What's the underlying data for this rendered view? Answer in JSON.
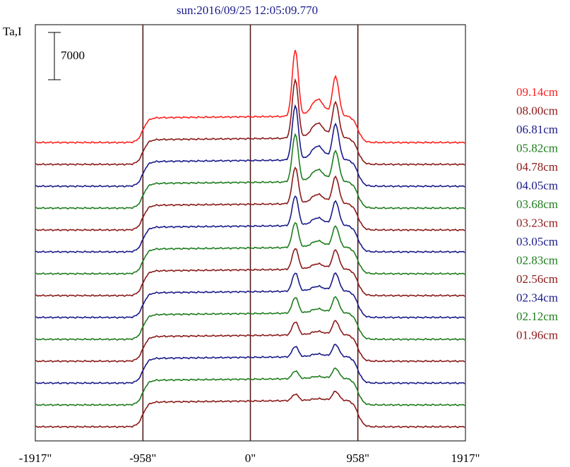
{
  "chart_data": {
    "type": "line",
    "title": "sun:2016/09/25 12:05:09.770",
    "ylabel": "Ta,I",
    "scale_bar_label": "7000",
    "xlim": [
      -1917,
      1917
    ],
    "x_ticks": [
      {
        "value": -1917,
        "label": "-1917\""
      },
      {
        "value": -958,
        "label": "-958\""
      },
      {
        "value": 0,
        "label": "0\""
      },
      {
        "value": 958,
        "label": "958\""
      },
      {
        "value": 1917,
        "label": "1917\""
      }
    ],
    "vertical_lines": [
      -958,
      0,
      958
    ],
    "series": [
      {
        "name": "09.14cm",
        "color": "#ff2020",
        "offset": 14,
        "disk": 1.0,
        "peak_a": 1.0,
        "peak_b": 0.62
      },
      {
        "name": "08.00cm",
        "color": "#8b1a1a",
        "offset": 13,
        "disk": 1.0,
        "peak_a": 0.88,
        "peak_b": 0.56
      },
      {
        "name": "06.81cm",
        "color": "#1a1a8b",
        "offset": 12,
        "disk": 1.0,
        "peak_a": 0.82,
        "peak_b": 0.56
      },
      {
        "name": "05.82cm",
        "color": "#1e7d1e",
        "offset": 11,
        "disk": 1.0,
        "peak_a": 0.72,
        "peak_b": 0.48
      },
      {
        "name": "04.78cm",
        "color": "#8b1a1a",
        "offset": 10,
        "disk": 1.0,
        "peak_a": 0.55,
        "peak_b": 0.42
      },
      {
        "name": "04.05cm",
        "color": "#1a1a8b",
        "offset": 9,
        "disk": 1.0,
        "peak_a": 0.45,
        "peak_b": 0.38
      },
      {
        "name": "03.68cm",
        "color": "#1e7d1e",
        "offset": 8,
        "disk": 1.0,
        "peak_a": 0.38,
        "peak_b": 0.33
      },
      {
        "name": "03.23cm",
        "color": "#8b1a1a",
        "offset": 7,
        "disk": 1.0,
        "peak_a": 0.32,
        "peak_b": 0.3
      },
      {
        "name": "03.05cm",
        "color": "#1a1a8b",
        "offset": 6,
        "disk": 1.0,
        "peak_a": 0.28,
        "peak_b": 0.28
      },
      {
        "name": "02.83cm",
        "color": "#1e7d1e",
        "offset": 5,
        "disk": 1.0,
        "peak_a": 0.24,
        "peak_b": 0.25
      },
      {
        "name": "02.56cm",
        "color": "#8b1a1a",
        "offset": 4,
        "disk": 1.0,
        "peak_a": 0.2,
        "peak_b": 0.22
      },
      {
        "name": "02.34cm",
        "color": "#1a1a8b",
        "offset": 3,
        "disk": 1.0,
        "peak_a": 0.16,
        "peak_b": 0.19
      },
      {
        "name": "02.12cm",
        "color": "#1e7d1e",
        "offset": 2,
        "disk": 1.0,
        "peak_a": 0.12,
        "peak_b": 0.16
      },
      {
        "name": "01.96cm",
        "color": "#8b1a1a",
        "offset": 1,
        "disk": 1.0,
        "peak_a": 0.1,
        "peak_b": 0.14
      }
    ],
    "grid": false,
    "legend_placement": "right"
  }
}
